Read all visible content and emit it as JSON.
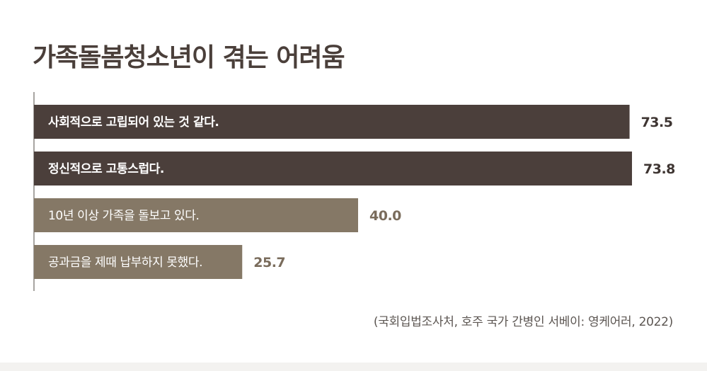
{
  "chart_data": {
    "type": "bar",
    "orientation": "horizontal",
    "title": "가족돌봄청소년이 겪는 어려움",
    "categories": [
      "사회적으로 고립되어 있는 것 같다.",
      "정신적으로 고통스럽다.",
      "10년 이상 가족을 돌보고 있다.",
      "공과금을 제때 납부하지 못했다."
    ],
    "values": [
      73.5,
      73.8,
      40.0,
      25.7
    ],
    "value_labels": [
      "73.5",
      "73.8",
      "40.0",
      "25.7"
    ],
    "colors": [
      "#4b3f3b",
      "#4b3f3b",
      "#857866",
      "#857866"
    ],
    "source": "(국회입법조사처, 호주 국가 간병인 서베이: 영케어러, 2022)"
  }
}
